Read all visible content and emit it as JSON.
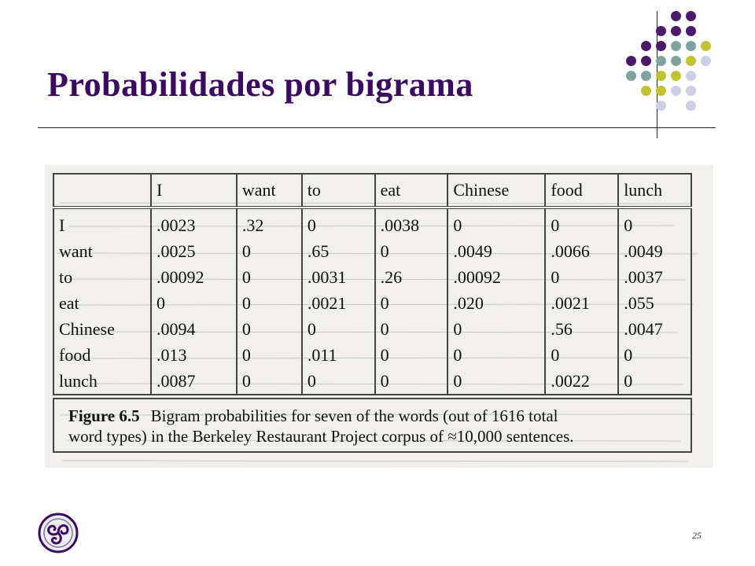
{
  "slide": {
    "title": "Probabilidades por bigrama",
    "page_number": "25",
    "accent_color": "#3b0a63",
    "dot_colors": [
      "#4b1a6b",
      "#7fa39e",
      "#c2c12f",
      "#cdd0e4"
    ]
  },
  "bigram_table": {
    "columns": [
      "",
      "I",
      "want",
      "to",
      "eat",
      "Chinese",
      "food",
      "lunch"
    ],
    "rows": [
      {
        "word": "I",
        "values": [
          ".0023",
          ".32",
          "0",
          ".0038",
          "0",
          "0",
          "0"
        ]
      },
      {
        "word": "want",
        "values": [
          ".0025",
          "0",
          ".65",
          "0",
          ".0049",
          ".0066",
          ".0049"
        ]
      },
      {
        "word": "to",
        "values": [
          ".00092",
          "0",
          ".0031",
          ".26",
          ".00092",
          "0",
          ".0037"
        ]
      },
      {
        "word": "eat",
        "values": [
          "0",
          "0",
          ".0021",
          "0",
          ".020",
          ".0021",
          ".055"
        ]
      },
      {
        "word": "Chinese",
        "values": [
          ".0094",
          "0",
          "0",
          "0",
          "0",
          ".56",
          ".0047"
        ]
      },
      {
        "word": "food",
        "values": [
          ".013",
          "0",
          ".011",
          "0",
          "0",
          "0",
          "0"
        ]
      },
      {
        "word": "lunch",
        "values": [
          ".0087",
          "0",
          "0",
          "0",
          "0",
          ".0022",
          "0"
        ]
      }
    ],
    "caption_label": "Figure 6.5",
    "caption_line1": "Bigram probabilities for seven of the words (out of 1616 total",
    "caption_line2": "word types) in the Berkeley Restaurant Project corpus of ≈10,000 sentences."
  },
  "logo_icon": "triskelion-icon"
}
